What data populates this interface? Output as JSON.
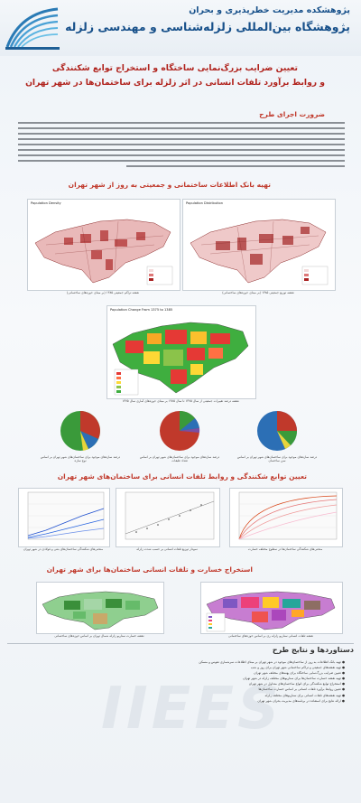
{
  "header": {
    "institute_line1": "پژوهشکده مدیریت خطرپذیری و بحران",
    "institute_line2": "پژوهشگاه بین‌المللی زلزله‌شناسی و مهندسی زلزله"
  },
  "title": {
    "line1": "تعیین ضرایب بزرگ‌نمایی ساختگاه و استخراج توابع شکنندگی",
    "line2": "و روابط برآورد تلفات انسانی در اثر زلزله برای ساختمان‌ها در شهر تهران"
  },
  "sections": {
    "necessity": "ضرورت اجرای طرح",
    "databank": "تهیه بانک اطلاعات ساختمانی و جمعیتی به روز از شهر تهران",
    "fragility": "تعیین توابع شکنندگی و روابط تلفات انسانی برای ساختمان‌های شهر تهران",
    "losses": "استخراج خسارت و تلفات انسانی ساختمان‌ها برای شهر تهران",
    "results": "دستاوردها و نتایج طرح"
  },
  "maps": {
    "density_label": "Population Density",
    "distribution_label": "Population Distribution",
    "change_label": "Population Change From 1375 to 1385",
    "density_caption": "نقشه تراکم جمعیتی ۱۳۸۵ (بر مبنای حوزه‌های ساختمانی)",
    "distribution_caption": "نقشه توزیع جمعیتی ۱۳۸۵ (بر مبنای حوزه‌های ساختمانی)",
    "change_caption": "نقشه درصد تغییرات جمعیتی از سال ۱۳۷۵ تا سال ۱۳۸۵ بر مبنای حوزه‌های آماری سال ۱۳۷۵"
  },
  "pies": {
    "captions": [
      "درصد سازه‌های موجود برای ساختمان‌های شهر تهران بر اساس نوع سازه",
      "درصد سازه‌های موجود برای ساختمان‌های شهر تهران بر اساس تعداد طبقات",
      "درصد سازه‌های موجود برای ساختمان‌های شهر تهران بر اساس سن ساختمان"
    ],
    "colors": [
      "#3a9a3a",
      "#c0392b",
      "#2c6fb5",
      "#e8d43a",
      "#7a4ea3"
    ]
  },
  "fragility_captions": [
    "منحنی‌های شکنندگی ساختمان‌های بتنی و فولادی در شهر تهران",
    "نمودار توزیع تلفات انسانی بر حسب شدت زلزله",
    "منحنی‌های شکنندگی ساختمان‌ها در سطوح مختلف خسارت"
  ],
  "loss_captions": [
    "نقشه خسارت سناریو زلزله شمال تهران بر اساس حوزه‌های ساختمانی",
    "نقشه تلفات انسانی سناریو زلزله ری بر اساس حوزه‌های ساختمانی"
  ],
  "results_bullets": [
    "● تهیه بانک اطلاعات به روز از ساختمان‌های موجود در شهر تهران بر مبنای اطلاعات سرشماری نفوس و مسکن",
    "● تهیه نقشه‌های جمعیتی و تراکم ساختمانی شهر تهران برای روز و شب",
    "● تعیین ضرایب بزرگ‌نمایی ساختگاه برای پهنه‌های مختلف شهر تهران",
    "● تهیه نقشه خسارت ساختمان‌ها برای سناریوهای مختلف زلزله در شهر تهران",
    "● استخراج توابع شکنندگی برای انواع ساختمان‌های متداول در شهر تهران",
    "● تعیین روابط برآورد تلفات انسانی بر اساس خسارت ساختمان‌ها",
    "● تهیه نقشه‌های تلفات انسانی برای سناریوهای مختلف زلزله",
    "● ارائه نتایج برای استفاده در برنامه‌های مدیریت بحران شهر تهران"
  ],
  "watermark": "IIEES"
}
